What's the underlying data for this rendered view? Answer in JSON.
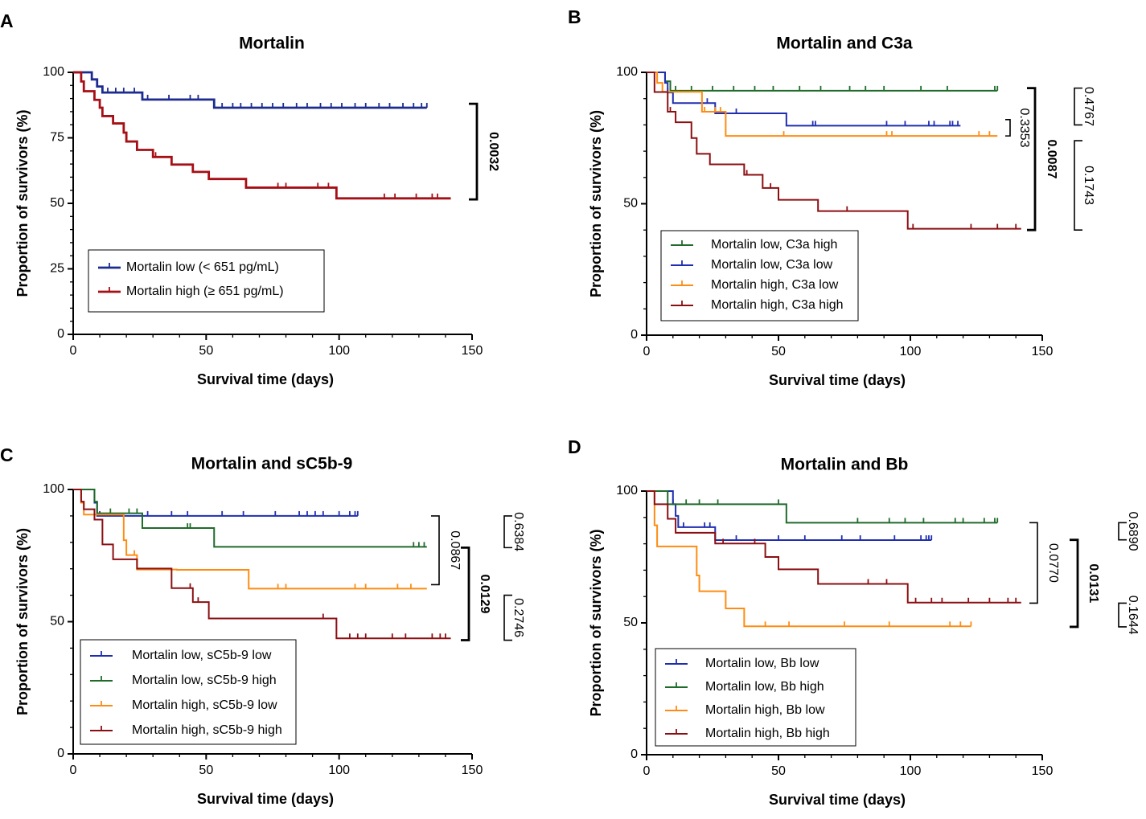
{
  "chart_data": [
    {
      "type": "line",
      "panel_letter": "A",
      "title": "Mortalin",
      "xlabel": "Survival time (days)",
      "ylabel": "Proportion of survivors (%)",
      "xlim": [
        0,
        150
      ],
      "ylim": [
        0,
        100
      ],
      "xticks": [
        "0",
        "50",
        "100",
        "150"
      ],
      "yticks": [
        "0",
        "25",
        "50",
        "75",
        "100"
      ],
      "legend_position": "bottom-left",
      "series": [
        {
          "name": "Mortalin low (< 651 pg/mL)",
          "color": "#1c2b8f",
          "steps": [
            [
              0,
              100
            ],
            [
              7,
              97.3
            ],
            [
              9,
              94.6
            ],
            [
              11,
              92.3
            ],
            [
              26,
              89.6
            ],
            [
              53,
              86.5
            ],
            [
              133,
              86.5
            ]
          ],
          "censors": [
            13,
            16,
            19,
            23,
            28,
            36,
            44,
            47,
            56,
            60,
            63,
            67,
            71,
            75,
            79,
            84,
            88,
            93,
            97,
            101,
            106,
            110,
            115,
            119,
            124,
            128,
            131,
            133
          ]
        },
        {
          "name": "Mortalin high (≥ 651 pg/mL)",
          "color": "#a50f15",
          "steps": [
            [
              0,
              100
            ],
            [
              3,
              96.5
            ],
            [
              4,
              92.8
            ],
            [
              8,
              89.5
            ],
            [
              10,
              86.5
            ],
            [
              11,
              83.3
            ],
            [
              15,
              80.5
            ],
            [
              19,
              77
            ],
            [
              20,
              73.6
            ],
            [
              24,
              70.4
            ],
            [
              30,
              67.7
            ],
            [
              37,
              64.8
            ],
            [
              45,
              62
            ],
            [
              51,
              59.3
            ],
            [
              65,
              56
            ],
            [
              99,
              51.9
            ],
            [
              142,
              51.9
            ]
          ],
          "censors": [
            31,
            77,
            80,
            92,
            96,
            117,
            121,
            129,
            135,
            137
          ]
        }
      ],
      "pvalues": [
        {
          "label": "0.0032",
          "bold": true,
          "y_top": 88,
          "y_bottom": 51.5
        }
      ]
    },
    {
      "type": "line",
      "panel_letter": "B",
      "title": "Mortalin and C3a",
      "xlabel": "Survival time (days)",
      "ylabel": "Proportion of survivors (%)",
      "xlim": [
        0,
        150
      ],
      "ylim": [
        0,
        100
      ],
      "xticks": [
        "0",
        "50",
        "100",
        "150"
      ],
      "yticks": [
        "0",
        "50",
        "100"
      ],
      "legend_position": "bottom-left",
      "series": [
        {
          "name": "Mortalin low,  C3a high",
          "color": "#1f6b2a",
          "steps": [
            [
              0,
              100
            ],
            [
              7,
              96.6
            ],
            [
              9,
              93
            ],
            [
              133,
              93
            ]
          ],
          "censors": [
            11,
            17,
            25,
            33,
            41,
            48,
            58,
            66,
            77,
            83,
            90,
            104,
            114,
            132,
            133
          ]
        },
        {
          "name": "Mortalin low,  C3a low",
          "color": "#1f2eb0",
          "steps": [
            [
              0,
              100
            ],
            [
              7,
              96
            ],
            [
              8,
              92.3
            ],
            [
              10,
              88.3
            ],
            [
              26,
              84.4
            ],
            [
              53,
              79.7
            ],
            [
              119,
              79.7
            ]
          ],
          "censors": [
            8,
            23,
            34,
            63,
            64,
            91,
            98,
            107,
            109,
            115,
            116,
            118
          ]
        },
        {
          "name": "Mortalin high, C3a low",
          "color": "#ff8c12",
          "steps": [
            [
              0,
              100
            ],
            [
              4,
              96
            ],
            [
              6,
              92.6
            ],
            [
              21,
              85
            ],
            [
              30,
              75.8
            ],
            [
              133,
              75.8
            ]
          ],
          "censors": [
            22,
            26,
            28,
            52,
            91,
            93,
            126,
            130
          ]
        },
        {
          "name": "Mortalin high, C3a high",
          "color": "#8b0f12",
          "steps": [
            [
              0,
              100
            ],
            [
              3,
              92.5
            ],
            [
              8,
              85
            ],
            [
              11,
              81
            ],
            [
              17,
              75
            ],
            [
              19,
              69
            ],
            [
              24,
              65
            ],
            [
              37,
              61
            ],
            [
              44,
              56
            ],
            [
              50,
              51.5
            ],
            [
              65,
              47.2
            ],
            [
              99,
              40.5
            ],
            [
              142,
              40.5
            ]
          ],
          "censors": [
            9,
            38,
            47,
            76,
            101,
            123,
            133,
            140
          ]
        }
      ],
      "pvalues": [
        {
          "label": "0.4767",
          "bold": false,
          "y_top": 94,
          "y_bottom": 80
        },
        {
          "label": "0.3353",
          "bold": false,
          "y_top": 82,
          "y_bottom": 75.8
        },
        {
          "label": "0.0087",
          "bold": true,
          "y_top": 94,
          "y_bottom": 40
        },
        {
          "label": "0.1743",
          "bold": false,
          "y_top": 74,
          "y_bottom": 40
        }
      ]
    },
    {
      "type": "line",
      "panel_letter": "C",
      "title": "Mortalin and sC5b-9",
      "xlabel": "Survival time (days)",
      "ylabel": "Proportion of survivors (%)",
      "xlim": [
        0,
        150
      ],
      "ylim": [
        0,
        100
      ],
      "xticks": [
        "0",
        "50",
        "100",
        "150"
      ],
      "yticks": [
        "0",
        "50",
        "100"
      ],
      "legend_position": "bottom-left",
      "series": [
        {
          "name": "Mortalin low, sC5b-9 low",
          "color": "#1f2eb0",
          "steps": [
            [
              0,
              100
            ],
            [
              8,
              95
            ],
            [
              9,
              90
            ],
            [
              107,
              90
            ]
          ],
          "censors": [
            10,
            28,
            37,
            43,
            56,
            64,
            76,
            85,
            88,
            91,
            94,
            100,
            104,
            106,
            107
          ]
        },
        {
          "name": "Mortalin low, sC5b-9 high",
          "color": "#1f6b2a",
          "steps": [
            [
              0,
              100
            ],
            [
              8,
              95.4
            ],
            [
              9,
              91
            ],
            [
              26,
              85.4
            ],
            [
              53,
              78.3
            ],
            [
              133,
              78.3
            ]
          ],
          "censors": [
            14,
            21,
            24,
            43,
            44,
            128,
            130,
            132
          ]
        },
        {
          "name": "Mortalin high, sC5b-9 low",
          "color": "#ff8c12",
          "steps": [
            [
              0,
              100
            ],
            [
              3,
              95
            ],
            [
              4,
              90.5
            ],
            [
              19,
              80.8
            ],
            [
              20,
              75.2
            ],
            [
              24,
              69.7
            ],
            [
              39,
              69.6
            ],
            [
              66,
              62.5
            ],
            [
              133,
              62.5
            ]
          ],
          "censors": [
            23,
            77,
            80,
            106,
            110,
            122,
            127
          ]
        },
        {
          "name": "Mortalin high, sC5b-9 high",
          "color": "#8b0f12",
          "steps": [
            [
              0,
              100
            ],
            [
              3,
              95.4
            ],
            [
              4,
              92.5
            ],
            [
              8,
              88.6
            ],
            [
              11,
              79.2
            ],
            [
              15,
              73.6
            ],
            [
              24,
              70.1
            ],
            [
              37,
              62.7
            ],
            [
              45,
              57.4
            ],
            [
              51,
              51.2
            ],
            [
              99,
              43.7
            ],
            [
              142,
              43.7
            ]
          ],
          "censors": [
            44,
            47,
            94,
            104,
            107,
            110,
            120,
            125,
            135,
            138,
            140
          ]
        }
      ],
      "pvalues": [
        {
          "label": "0.0867",
          "bold": false,
          "y_top": 90,
          "y_bottom": 64
        },
        {
          "label": "0.6384",
          "bold": false,
          "y_top": 90,
          "y_bottom": 78
        },
        {
          "label": "0.0129",
          "bold": true,
          "y_top": 78,
          "y_bottom": 43
        },
        {
          "label": "0.2746",
          "bold": false,
          "y_top": 60,
          "y_bottom": 43
        }
      ]
    },
    {
      "type": "line",
      "panel_letter": "D",
      "title": "Mortalin and Bb",
      "xlabel": "Survival time (days)",
      "ylabel": "Proportion of survivors (%)",
      "xlim": [
        0,
        150
      ],
      "ylim": [
        0,
        100
      ],
      "xticks": [
        "0",
        "50",
        "100",
        "150"
      ],
      "yticks": [
        "0",
        "50",
        "100"
      ],
      "legend_position": "bottom-left",
      "series": [
        {
          "name": "Mortalin low, Bb low",
          "color": "#1f2eb0",
          "steps": [
            [
              0,
              100
            ],
            [
              10,
              95
            ],
            [
              11,
              90.6
            ],
            [
              12,
              86.3
            ],
            [
              26,
              81.4
            ],
            [
              108,
              81.4
            ]
          ],
          "censors": [
            10,
            14,
            22,
            24,
            34,
            50,
            60,
            74,
            81,
            94,
            104,
            106,
            107,
            108
          ]
        },
        {
          "name": "Mortalin low, Bb high",
          "color": "#1f6b2a",
          "steps": [
            [
              0,
              100
            ],
            [
              8,
              95
            ],
            [
              53,
              88
            ],
            [
              133,
              88
            ]
          ],
          "censors": [
            15,
            20,
            27,
            50,
            80,
            92,
            98,
            105,
            117,
            120,
            128,
            132,
            133
          ]
        },
        {
          "name": "Mortalin high, Bb low",
          "color": "#ff8c12",
          "steps": [
            [
              0,
              100
            ],
            [
              3,
              87
            ],
            [
              4,
              79
            ],
            [
              19,
              68
            ],
            [
              20,
              62
            ],
            [
              30,
              55.5
            ],
            [
              37,
              48.7
            ],
            [
              123,
              48.7
            ]
          ],
          "censors": [
            45,
            54,
            75,
            92,
            115,
            119,
            123
          ]
        },
        {
          "name": "Mortalin high, Bb high",
          "color": "#8b0f12",
          "steps": [
            [
              0,
              100
            ],
            [
              3,
              95
            ],
            [
              8,
              89.5
            ],
            [
              11,
              84.2
            ],
            [
              26,
              80.1
            ],
            [
              45,
              75
            ],
            [
              50,
              70.3
            ],
            [
              65,
              64.8
            ],
            [
              99,
              57.7
            ],
            [
              142,
              57.7
            ]
          ],
          "censors": [
            29,
            41,
            84,
            91,
            102,
            108,
            112,
            122,
            130,
            137,
            140
          ]
        }
      ],
      "pvalues": [
        {
          "label": "0.0770",
          "bold": false,
          "y_top": 88,
          "y_bottom": 57.5
        },
        {
          "label": "0.6890",
          "bold": false,
          "y_top": 88,
          "y_bottom": 81.5
        },
        {
          "label": "0.0131",
          "bold": true,
          "y_top": 81.5,
          "y_bottom": 48.5
        },
        {
          "label": "0.1644",
          "bold": false,
          "y_top": 57.5,
          "y_bottom": 48.5
        }
      ]
    }
  ]
}
